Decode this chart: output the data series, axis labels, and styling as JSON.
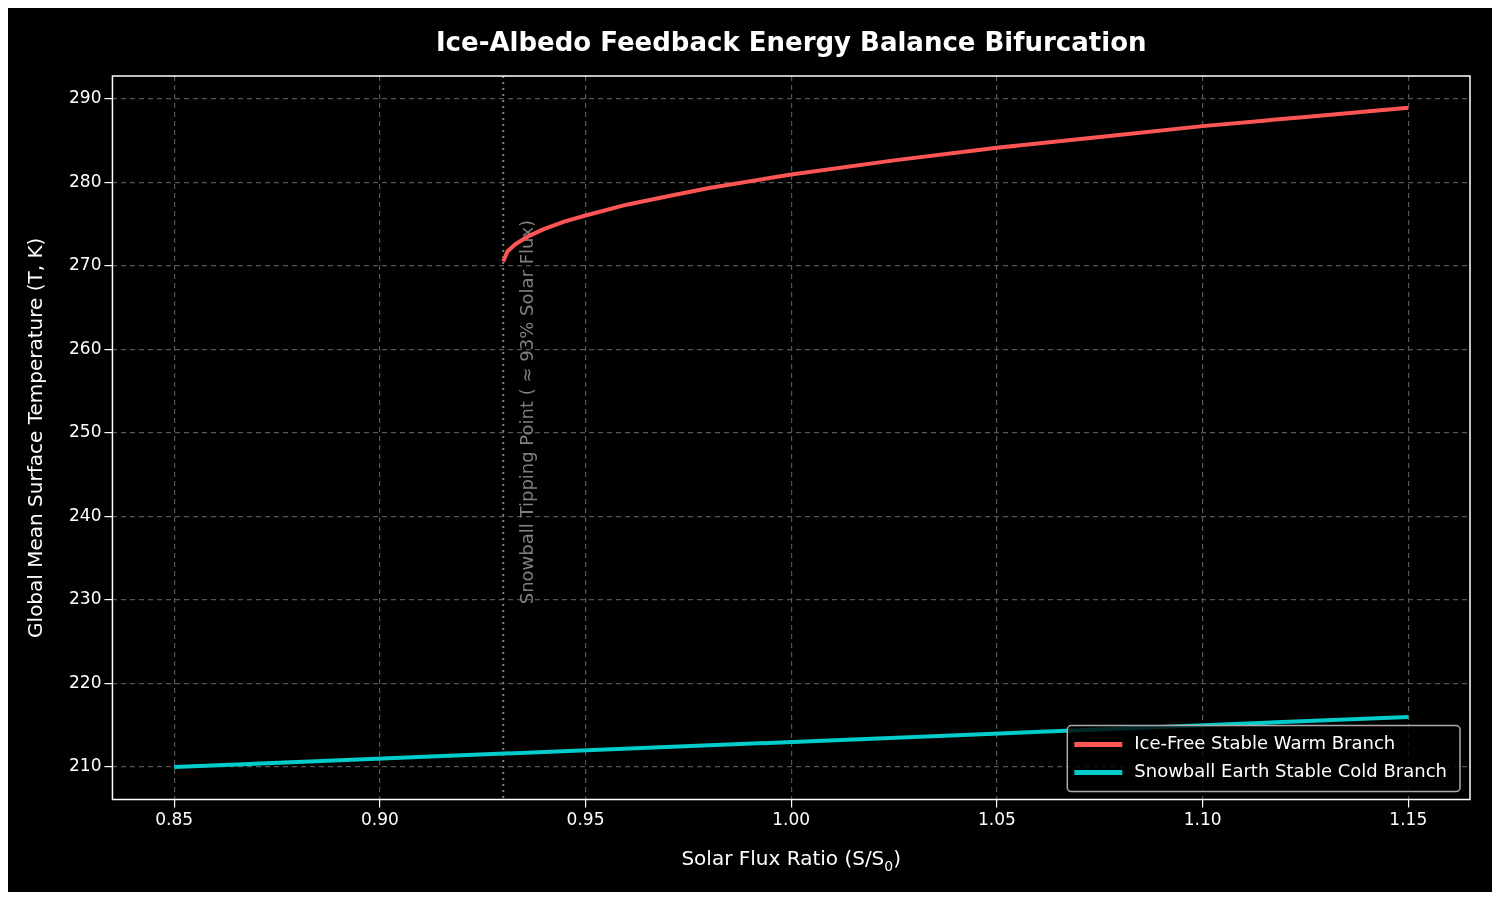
{
  "chart_data": {
    "type": "line",
    "title": "Ice-Albedo Feedback Energy Balance Bifurcation",
    "xlabel": "Solar Flux Ratio (S/S$_{0}$)",
    "ylabel": "Global Mean Surface Temperature (T, K)",
    "series": [
      {
        "name": "Ice-Free Stable Warm Branch",
        "color": "#ff5555",
        "x": [
          0.93,
          0.931,
          0.933,
          0.936,
          0.94,
          0.945,
          0.95,
          0.96,
          0.97,
          0.98,
          1.0,
          1.025,
          1.05,
          1.075,
          1.1,
          1.125,
          1.15
        ],
        "values": [
          270.5,
          271.7,
          272.6,
          273.5,
          274.4,
          275.3,
          276.0,
          277.3,
          278.3,
          279.3,
          280.9,
          282.6,
          284.1,
          285.4,
          286.7,
          287.8,
          288.9
        ]
      },
      {
        "name": "Snowball Earth Stable Cold Branch",
        "color": "#00cccc",
        "x": [
          0.85,
          1.15
        ],
        "values": [
          210,
          216
        ]
      }
    ],
    "xlim": [
      0.835,
      1.165
    ],
    "ylim": [
      206.1,
      292.7
    ],
    "xticks": [
      0.85,
      {
        "value": 0.9,
        "label": "0.90"
      },
      0.95,
      {
        "value": 1,
        "label": "1.00"
      },
      1.05,
      {
        "value": 1.1,
        "label": "1.10"
      },
      1.15
    ],
    "yticks": [
      210,
      220,
      230,
      240,
      250,
      260,
      270,
      280,
      290
    ],
    "ref_lines": [
      {
        "axis": "x",
        "value": 0.93,
        "label": "Snowball Tipping Point ( ≈ 93% Solar Flux)",
        "color": "#808080",
        "line_style": "dotted"
      }
    ],
    "grid": true,
    "legend": "bottom right",
    "line_style": "solid",
    "marker": "none"
  }
}
